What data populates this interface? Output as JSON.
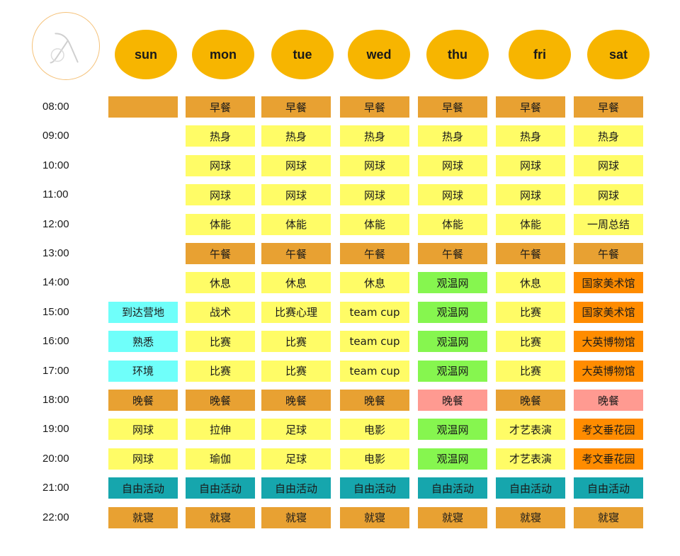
{
  "header": {
    "days": [
      "sun",
      "mon",
      "tue",
      "wed",
      "thu",
      "fri",
      "sat"
    ]
  },
  "times": [
    "08:00",
    "09:00",
    "10:00",
    "11:00",
    "12:00",
    "13:00",
    "14:00",
    "15:00",
    "16:00",
    "17:00",
    "18:00",
    "19:00",
    "20:00",
    "21:00",
    "22:00"
  ],
  "colors": {
    "meal": "#e8a132",
    "activity": "#fffc66",
    "arrival": "#6ffffa",
    "observation": "#86f64f",
    "museum": "#ff8c00",
    "special_dinner": "#ff9a91",
    "free_time": "#16a6ad",
    "day_bubble": "#f7b500"
  },
  "schedule": [
    [
      {
        "t": "",
        "c": "meal"
      },
      {
        "t": "早餐",
        "c": "meal"
      },
      {
        "t": "早餐",
        "c": "meal"
      },
      {
        "t": "早餐",
        "c": "meal"
      },
      {
        "t": "早餐",
        "c": "meal"
      },
      {
        "t": "早餐",
        "c": "meal"
      },
      {
        "t": "早餐",
        "c": "meal"
      }
    ],
    [
      null,
      {
        "t": "热身",
        "c": "yellow"
      },
      {
        "t": "热身",
        "c": "yellow"
      },
      {
        "t": "热身",
        "c": "yellow"
      },
      {
        "t": "热身",
        "c": "yellow"
      },
      {
        "t": "热身",
        "c": "yellow"
      },
      {
        "t": "热身",
        "c": "yellow"
      }
    ],
    [
      null,
      {
        "t": "网球",
        "c": "yellow"
      },
      {
        "t": "网球",
        "c": "yellow"
      },
      {
        "t": "网球",
        "c": "yellow"
      },
      {
        "t": "网球",
        "c": "yellow"
      },
      {
        "t": "网球",
        "c": "yellow"
      },
      {
        "t": "网球",
        "c": "yellow"
      }
    ],
    [
      null,
      {
        "t": "网球",
        "c": "yellow"
      },
      {
        "t": "网球",
        "c": "yellow"
      },
      {
        "t": "网球",
        "c": "yellow"
      },
      {
        "t": "网球",
        "c": "yellow"
      },
      {
        "t": "网球",
        "c": "yellow"
      },
      {
        "t": "网球",
        "c": "yellow"
      }
    ],
    [
      null,
      {
        "t": "体能",
        "c": "yellow"
      },
      {
        "t": "体能",
        "c": "yellow"
      },
      {
        "t": "体能",
        "c": "yellow"
      },
      {
        "t": "体能",
        "c": "yellow"
      },
      {
        "t": "体能",
        "c": "yellow"
      },
      {
        "t": "一周总结",
        "c": "yellow"
      }
    ],
    [
      null,
      {
        "t": "午餐",
        "c": "meal"
      },
      {
        "t": "午餐",
        "c": "meal"
      },
      {
        "t": "午餐",
        "c": "meal"
      },
      {
        "t": "午餐",
        "c": "meal"
      },
      {
        "t": "午餐",
        "c": "meal"
      },
      {
        "t": "午餐",
        "c": "meal"
      }
    ],
    [
      null,
      {
        "t": "休息",
        "c": "yellow"
      },
      {
        "t": "休息",
        "c": "yellow"
      },
      {
        "t": "休息",
        "c": "yellow"
      },
      {
        "t": "观温网",
        "c": "green"
      },
      {
        "t": "休息",
        "c": "yellow"
      },
      {
        "t": "国家美术馆",
        "c": "orange"
      }
    ],
    [
      {
        "t": "到达营地",
        "c": "cyan"
      },
      {
        "t": "战术",
        "c": "yellow"
      },
      {
        "t": "比赛心理",
        "c": "yellow"
      },
      {
        "t": "team cup",
        "c": "yellow"
      },
      {
        "t": "观温网",
        "c": "green"
      },
      {
        "t": "比赛",
        "c": "yellow"
      },
      {
        "t": "国家美术馆",
        "c": "orange"
      }
    ],
    [
      {
        "t": "熟悉",
        "c": "cyan"
      },
      {
        "t": "比赛",
        "c": "yellow"
      },
      {
        "t": "比赛",
        "c": "yellow"
      },
      {
        "t": "team cup",
        "c": "yellow"
      },
      {
        "t": "观温网",
        "c": "green"
      },
      {
        "t": "比赛",
        "c": "yellow"
      },
      {
        "t": "大英博物馆",
        "c": "orange"
      }
    ],
    [
      {
        "t": "环境",
        "c": "cyan"
      },
      {
        "t": "比赛",
        "c": "yellow"
      },
      {
        "t": "比赛",
        "c": "yellow"
      },
      {
        "t": "team cup",
        "c": "yellow"
      },
      {
        "t": "观温网",
        "c": "green"
      },
      {
        "t": "比赛",
        "c": "yellow"
      },
      {
        "t": "大英博物馆",
        "c": "orange"
      }
    ],
    [
      {
        "t": "晚餐",
        "c": "meal"
      },
      {
        "t": "晚餐",
        "c": "meal"
      },
      {
        "t": "晚餐",
        "c": "meal"
      },
      {
        "t": "晚餐",
        "c": "meal"
      },
      {
        "t": "晚餐",
        "c": "pink"
      },
      {
        "t": "晚餐",
        "c": "meal"
      },
      {
        "t": "晚餐",
        "c": "pink"
      }
    ],
    [
      {
        "t": "网球",
        "c": "yellow"
      },
      {
        "t": "拉伸",
        "c": "yellow"
      },
      {
        "t": "足球",
        "c": "yellow"
      },
      {
        "t": "电影",
        "c": "yellow"
      },
      {
        "t": "观温网",
        "c": "green"
      },
      {
        "t": "才艺表演",
        "c": "yellow"
      },
      {
        "t": "考文垂花园",
        "c": "orange"
      }
    ],
    [
      {
        "t": "网球",
        "c": "yellow"
      },
      {
        "t": "瑜伽",
        "c": "yellow"
      },
      {
        "t": "足球",
        "c": "yellow"
      },
      {
        "t": "电影",
        "c": "yellow"
      },
      {
        "t": "观温网",
        "c": "green"
      },
      {
        "t": "才艺表演",
        "c": "yellow"
      },
      {
        "t": "考文垂花园",
        "c": "orange"
      }
    ],
    [
      {
        "t": "自由活动",
        "c": "teal"
      },
      {
        "t": "自由活动",
        "c": "teal"
      },
      {
        "t": "自由活动",
        "c": "teal"
      },
      {
        "t": "自由活动",
        "c": "teal"
      },
      {
        "t": "自由活动",
        "c": "teal"
      },
      {
        "t": "自由活动",
        "c": "teal"
      },
      {
        "t": "自由活动",
        "c": "teal"
      }
    ],
    [
      {
        "t": "就寝",
        "c": "meal"
      },
      {
        "t": "就寝",
        "c": "meal"
      },
      {
        "t": "就寝",
        "c": "meal"
      },
      {
        "t": "就寝",
        "c": "meal"
      },
      {
        "t": "就寝",
        "c": "meal"
      },
      {
        "t": "就寝",
        "c": "meal"
      },
      {
        "t": "就寝",
        "c": "meal"
      }
    ]
  ]
}
